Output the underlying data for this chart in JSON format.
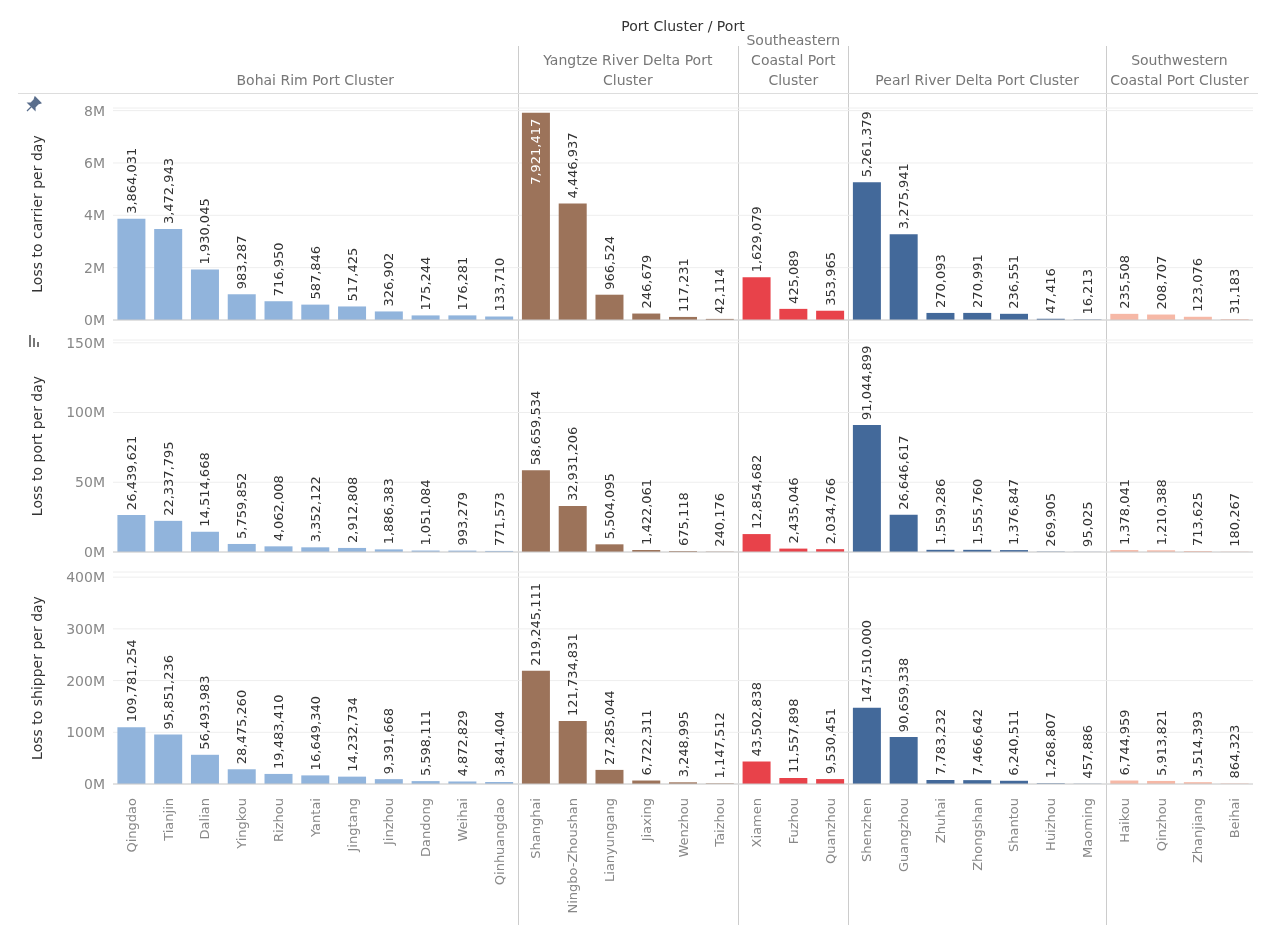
{
  "chart_data": [
    {
      "type": "bar",
      "title": "Port Cluster / Port",
      "ylabel": "Loss to carrier per day",
      "annotations": [
        "Bohai Rim Port Cluster",
        "Yangtze River Delta Port Cluster",
        "Southeastern Coastal Port Cluster",
        "Pearl River Delta Port Cluster",
        "Southwestern Coastal Port Cluster"
      ],
      "categories": [
        null,
        null,
        null,
        null,
        null,
        null,
        null,
        null,
        null,
        null,
        null,
        null,
        null,
        null,
        null,
        null,
        null,
        null,
        null,
        null,
        null,
        null,
        null,
        null,
        null,
        null,
        null,
        null,
        null,
        null,
        null
      ],
      "values": [
        3864031,
        3472943,
        1930045,
        983287,
        716950,
        587846,
        517425,
        326902,
        175244,
        176281,
        133710,
        7921417,
        4446937,
        966524,
        246679,
        117231,
        42114,
        1629079,
        425089,
        353965,
        5261379,
        3275941,
        270093,
        270991,
        236551,
        47416,
        16213,
        235508,
        208707,
        123076,
        31183
      ],
      "value_labels": [
        "3,864,031",
        "3,472,943",
        "1,930,045",
        "983,287",
        "716,950",
        "587,846",
        "517,425",
        "326,902",
        "175,244",
        "176,281",
        "133,710",
        "7,921,417",
        "4,446,937",
        "966,524",
        "246,679",
        "117,231",
        "42,114",
        "1,629,079",
        "425,089",
        "353,965",
        "5,261,379",
        "3,275,941",
        "270,093",
        "270,991",
        "236,551",
        "47,416",
        "16,213",
        "235,508",
        "208,707",
        "123,076",
        "31,183"
      ],
      "colors": [
        "#91b4dc",
        "#91b4dc",
        "#91b4dc",
        "#91b4dc",
        "#91b4dc",
        "#91b4dc",
        "#91b4dc",
        "#91b4dc",
        "#91b4dc",
        "#91b4dc",
        "#91b4dc",
        "#9c735a",
        "#9c735a",
        "#9c735a",
        "#9c735a",
        "#9c735a",
        "#9c735a",
        "#e8424a",
        "#e8424a",
        "#e8424a",
        "#43699a",
        "#43699a",
        "#43699a",
        "#43699a",
        "#43699a",
        "#43699a",
        "#43699a",
        "#f6b8a6",
        "#f6b8a6",
        "#f6b8a6",
        "#f6b8a6"
      ],
      "ylim": [
        0,
        8100000
      ],
      "yticks": [
        {
          "value": 0,
          "label": "0M"
        },
        {
          "value": 2000000,
          "label": "2M"
        },
        {
          "value": 4000000,
          "label": "4M"
        },
        {
          "value": 6000000,
          "label": "6M"
        },
        {
          "value": 8000000,
          "label": "8M"
        }
      ],
      "grid": "y",
      "legend": false,
      "tick_labels": "y"
    },
    {
      "type": "bar",
      "ylabel": "Loss to port per day",
      "categories": [
        null,
        null,
        null,
        null,
        null,
        null,
        null,
        null,
        null,
        null,
        null,
        null,
        null,
        null,
        null,
        null,
        null,
        null,
        null,
        null,
        null,
        null,
        null,
        null,
        null,
        null,
        null,
        null,
        null,
        null,
        null
      ],
      "values": [
        26439621,
        22337795,
        14514668,
        5759852,
        4062008,
        3352122,
        2912808,
        1886383,
        1051084,
        993279,
        771573,
        58659534,
        32931206,
        5504095,
        1422061,
        675118,
        240176,
        12854682,
        2435046,
        2034766,
        91044899,
        26646617,
        1559286,
        1555760,
        1376847,
        269905,
        95025,
        1378041,
        1210388,
        713625,
        180267
      ],
      "value_labels": [
        "26,439,621",
        "22,337,795",
        "14,514,668",
        "5,759,852",
        "4,062,008",
        "3,352,122",
        "2,912,808",
        "1,886,383",
        "1,051,084",
        "993,279",
        "771,573",
        "58,659,534",
        "32,931,206",
        "5,504,095",
        "1,422,061",
        "675,118",
        "240,176",
        "12,854,682",
        "2,435,046",
        "2,034,766",
        "91,044,899",
        "26,646,617",
        "1,559,286",
        "1,555,760",
        "1,376,847",
        "269,905",
        "95,025",
        "1,378,041",
        "1,210,388",
        "713,625",
        "180,267"
      ],
      "colors": [
        "#91b4dc",
        "#91b4dc",
        "#91b4dc",
        "#91b4dc",
        "#91b4dc",
        "#91b4dc",
        "#91b4dc",
        "#91b4dc",
        "#91b4dc",
        "#91b4dc",
        "#91b4dc",
        "#9c735a",
        "#9c735a",
        "#9c735a",
        "#9c735a",
        "#9c735a",
        "#9c735a",
        "#e8424a",
        "#e8424a",
        "#e8424a",
        "#43699a",
        "#43699a",
        "#43699a",
        "#43699a",
        "#43699a",
        "#43699a",
        "#43699a",
        "#f6b8a6",
        "#f6b8a6",
        "#f6b8a6",
        "#f6b8a6"
      ],
      "ylim": [
        0,
        152000000
      ],
      "yticks": [
        {
          "value": 0,
          "label": "0M"
        },
        {
          "value": 50000000,
          "label": "50M"
        },
        {
          "value": 100000000,
          "label": "100M"
        },
        {
          "value": 150000000,
          "label": "150M"
        }
      ],
      "grid": "y",
      "legend": false,
      "tick_labels": "y"
    },
    {
      "type": "bar",
      "ylabel": "Loss to shipper per day",
      "categories": [
        "Qingdao",
        "Tianjin",
        "Dalian",
        "Yingkou",
        "Rizhou",
        "Yantai",
        "Jingtang",
        "Jinzhou",
        "Dandong",
        "Weihai",
        "Qinhuangdao",
        "Shanghai",
        "Ningbo-Zhoushan",
        "Lianyungang",
        "Jiaxing",
        "Wenzhou",
        "Taizhou",
        "Xiamen",
        "Fuzhou",
        "Quanzhou",
        "Shenzhen",
        "Guangzhou",
        "Zhuhai",
        "Zhongshan",
        "Shantou",
        "Huizhou",
        "Maoming",
        "Haikou",
        "Qinzhou",
        "Zhanjiang",
        "Beihai"
      ],
      "values": [
        109781254,
        95851236,
        56493983,
        28475260,
        19483410,
        16649340,
        14232734,
        9391668,
        5598111,
        4872829,
        3841404,
        219245111,
        121734831,
        27285044,
        6722311,
        3248995,
        1147512,
        43502838,
        11557898,
        9530451,
        147510000,
        90659338,
        7783232,
        7466642,
        6240511,
        1268807,
        457886,
        6744959,
        5913821,
        3514393,
        864323
      ],
      "value_labels": [
        "109,781,254",
        "95,851,236",
        "56,493,983",
        "28,475,260",
        "19,483,410",
        "16,649,340",
        "14,232,734",
        "9,391,668",
        "5,598,111",
        "4,872,829",
        "3,841,404",
        "219,245,111",
        "121,734,831",
        "27,285,044",
        "6,722,311",
        "3,248,995",
        "1,147,512",
        "43,502,838",
        "11,557,898",
        "9,530,451",
        "147,510,000",
        "90,659,338",
        "7,783,232",
        "7,466,642",
        "6,240,511",
        "1,268,807",
        "457,886",
        "6,744,959",
        "5,913,821",
        "3,514,393",
        "864,323"
      ],
      "colors": [
        "#91b4dc",
        "#91b4dc",
        "#91b4dc",
        "#91b4dc",
        "#91b4dc",
        "#91b4dc",
        "#91b4dc",
        "#91b4dc",
        "#91b4dc",
        "#91b4dc",
        "#91b4dc",
        "#9c735a",
        "#9c735a",
        "#9c735a",
        "#9c735a",
        "#9c735a",
        "#9c735a",
        "#e8424a",
        "#e8424a",
        "#e8424a",
        "#43699a",
        "#43699a",
        "#43699a",
        "#43699a",
        "#43699a",
        "#43699a",
        "#43699a",
        "#f6b8a6",
        "#f6b8a6",
        "#f6b8a6",
        "#f6b8a6"
      ],
      "ylim": [
        0,
        410000000
      ],
      "yticks": [
        {
          "value": 0,
          "label": "0M"
        },
        {
          "value": 100000000,
          "label": "100M"
        },
        {
          "value": 200000000,
          "label": "200M"
        },
        {
          "value": 300000000,
          "label": "300M"
        },
        {
          "value": 400000000,
          "label": "400M"
        }
      ],
      "grid": "y",
      "legend": false
    }
  ]
}
